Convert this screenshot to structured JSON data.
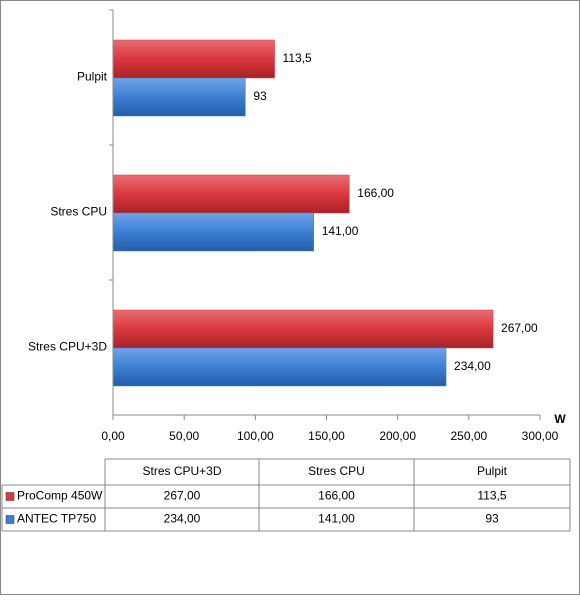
{
  "chart_data": {
    "type": "hbar",
    "categories": [
      "Stres CPU+3D",
      "Stres CPU",
      "Pulpit"
    ],
    "series": [
      {
        "name": "ProComp 450W",
        "color": "#d9383e",
        "values": [
          267,
          166,
          113.5
        ],
        "value_labels": [
          "267,00",
          "166,00",
          "113,5"
        ]
      },
      {
        "name": "ANTEC TP750",
        "color": "#3c7fd2",
        "values": [
          234,
          141,
          93
        ],
        "value_labels": [
          "234,00",
          "141,00",
          "93"
        ]
      }
    ],
    "xlim": [
      0,
      300
    ],
    "xticks": [
      {
        "value": 0,
        "label": "0,00"
      },
      {
        "value": 50,
        "label": "50,00"
      },
      {
        "value": 100,
        "label": "100,00"
      },
      {
        "value": 150,
        "label": "150,00"
      },
      {
        "value": 200,
        "label": "200,00"
      },
      {
        "value": 250,
        "label": "250,00"
      },
      {
        "value": 300,
        "label": "300,00"
      }
    ],
    "xlabel": "W"
  }
}
